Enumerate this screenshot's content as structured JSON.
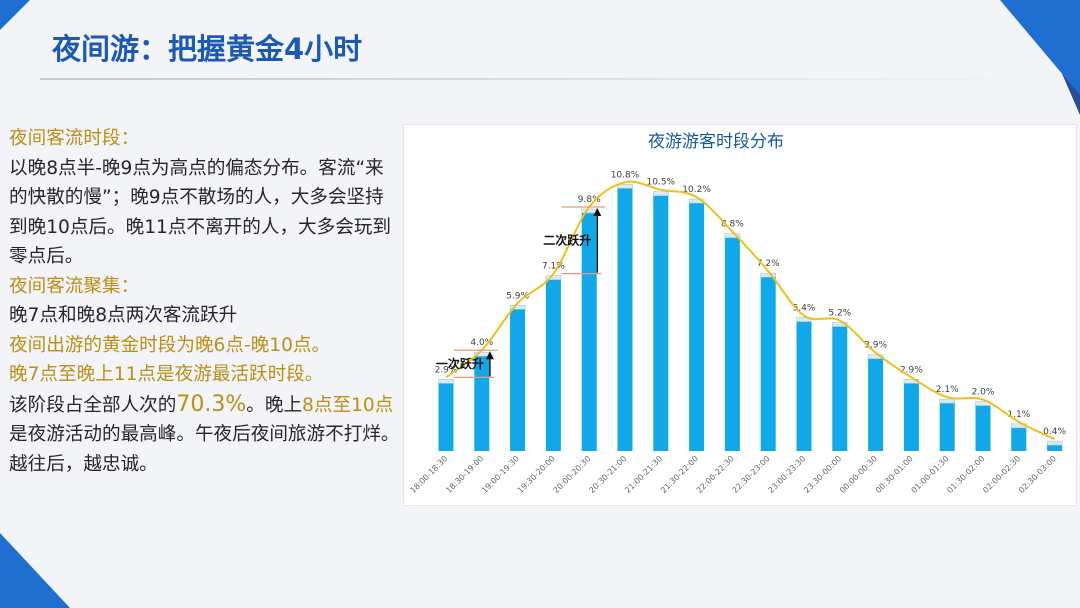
{
  "slide": {
    "title": "夜间游：把握黄金4小时"
  },
  "text": {
    "p1_heading": "夜间客流时段：",
    "p1_body": "以晚8点半-晚9点为高点的偏态分布。客流“来的快散的慢”；晚9点不散场的人，大多会坚持到晚10点后。晚11点不离开的人，大多会玩到零点后。",
    "p2_heading": "夜间客流聚集：",
    "p2_line1": "晚7点和晚8点两次客流跃升",
    "p2_line2": "夜间出游的黄金时段为晚6点-晚10点。",
    "p2_line3": "晚7点至晚上11点是夜游最活跃时段。",
    "p2_line4_a": "该阶段占全部人次的",
    "p2_line4_pct": "70.3%",
    "p2_line4_b": "。晚上",
    "p2_line4_c": "8点至10点",
    "p2_line4_d": "是夜游活动的最高峰。午夜后夜间旅游不打烊。越往后，越忠诚。"
  },
  "chart_data": {
    "type": "bar",
    "title": "夜游游客时段分布",
    "categories": [
      "18:00-18:30",
      "18:30-19:00",
      "19:00-19:30",
      "19:30-20:00",
      "20:00-20:30",
      "20:30-21:00",
      "21:00-21:30",
      "21:30-22:00",
      "22:00-22:30",
      "22:30-23:00",
      "23:00-23:30",
      "23:30-00:00",
      "00:00-00:30",
      "00:30-01:00",
      "01:00-01:30",
      "01:30-02:00",
      "02:00-02:30",
      "02:30-03:00"
    ],
    "values": [
      2.9,
      4.0,
      5.9,
      7.1,
      9.8,
      10.8,
      10.5,
      10.2,
      8.8,
      7.2,
      5.4,
      5.2,
      3.9,
      2.9,
      2.1,
      2.0,
      1.1,
      0.4
    ],
    "value_labels": [
      "2.9%",
      "4.0%",
      "5.9%",
      "7.1%",
      "9.8%",
      "10.8%",
      "10.5%",
      "10.2%",
      "8.8%",
      "7.2%",
      "5.4%",
      "5.2%",
      "3.9%",
      "2.9%",
      "2.1%",
      "2.0%",
      "1.1%",
      "0.4%"
    ],
    "ylim": [
      0,
      11.5
    ],
    "trend_line": true,
    "annotations": [
      {
        "text": "一次跃升",
        "from_index": 0,
        "to_index": 1
      },
      {
        "text": "二次跃升",
        "from_index": 3,
        "to_index": 4
      }
    ],
    "colors": {
      "bar": "#10a8e8",
      "bar_cap": "#d8ecf7",
      "trend": "#f1bf1a",
      "marker": "#e6997a",
      "title": "#1557a6"
    }
  }
}
